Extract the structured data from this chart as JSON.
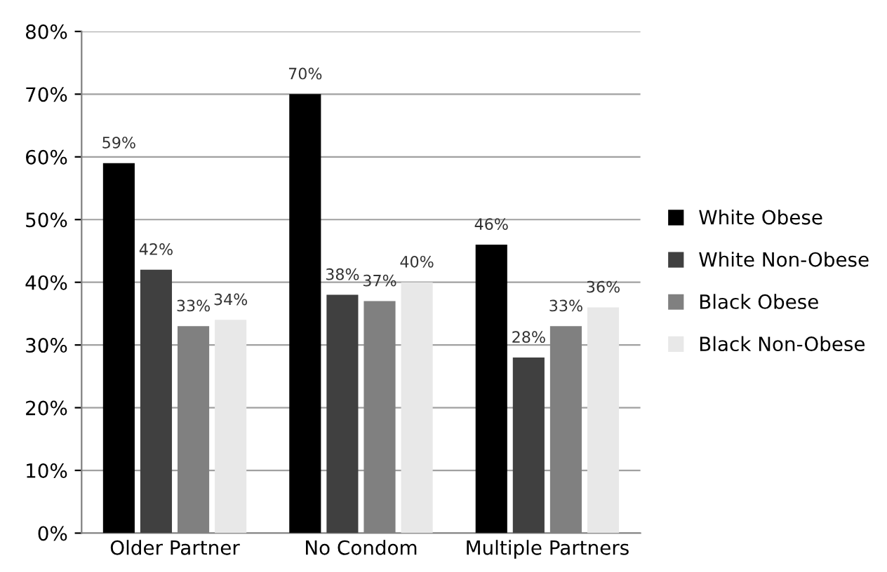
{
  "chart_data": {
    "type": "bar",
    "categories": [
      "Older Partner",
      "No Condom",
      "Multiple Partners"
    ],
    "series": [
      {
        "name": "White Obese",
        "color": "#000000",
        "values": [
          59,
          70,
          46
        ],
        "value_labels": [
          "59%",
          "70%",
          "46%"
        ]
      },
      {
        "name": "White Non-Obese",
        "color": "#404040",
        "values": [
          42,
          38,
          28
        ],
        "value_labels": [
          "42%",
          "38%",
          "28%"
        ]
      },
      {
        "name": "Black Obese",
        "color": "#808080",
        "values": [
          33,
          37,
          33
        ],
        "value_labels": [
          "33%",
          "37%",
          "33%"
        ]
      },
      {
        "name": "Black Non-Obese",
        "color": "#e8e8e8",
        "values": [
          34,
          40,
          36
        ],
        "value_labels": [
          "34%",
          "40%",
          "36%"
        ]
      }
    ],
    "ylim": [
      0,
      80
    ],
    "yticks": [
      {
        "value": 0,
        "label": "0%"
      },
      {
        "value": 10,
        "label": "10%"
      },
      {
        "value": 20,
        "label": "20%"
      },
      {
        "value": 30,
        "label": "30%"
      },
      {
        "value": 40,
        "label": "40%"
      },
      {
        "value": 50,
        "label": "50%"
      },
      {
        "value": 60,
        "label": "60%"
      },
      {
        "value": 70,
        "label": "70%"
      },
      {
        "value": 80,
        "label": "80%"
      }
    ],
    "grid": "y",
    "legend": "right"
  }
}
